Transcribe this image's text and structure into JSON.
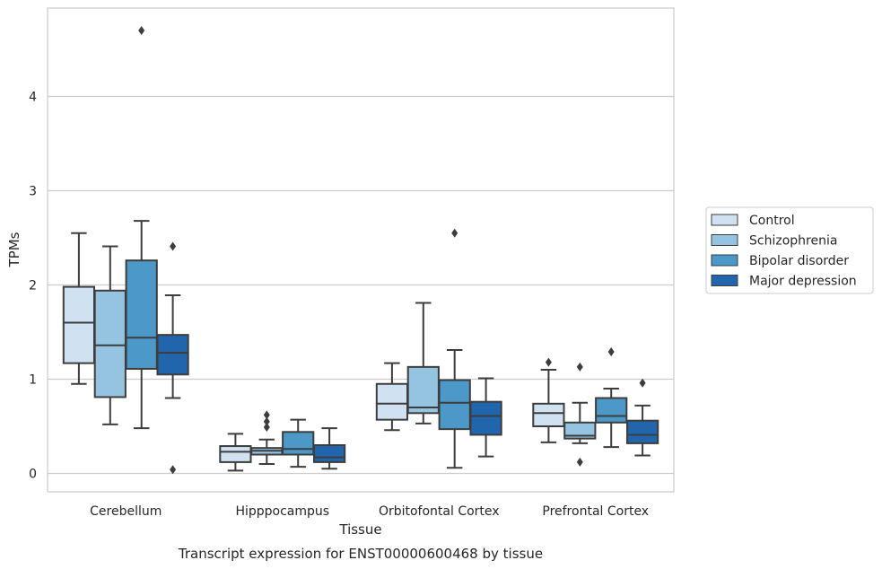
{
  "chart_data": {
    "type": "boxplot",
    "title": "",
    "caption": "Transcript expression for ENST00000600468 by tissue",
    "xlabel": "Tissue",
    "ylabel": "TPMs",
    "ylim": [
      -0.2,
      4.95
    ],
    "yticks": [
      0,
      1,
      2,
      3,
      4
    ],
    "grid": "horizontal",
    "legend_position": "right",
    "categories": [
      "Cerebellum",
      "Hipppocampus",
      "Orbitofontal Cortex",
      "Prefrontal Cortex"
    ],
    "series": [
      {
        "name": "Control",
        "color": "#d0e1f2",
        "boxes": [
          {
            "whislo": 0.95,
            "q1": 1.17,
            "med": 1.6,
            "q3": 1.98,
            "whishi": 2.55,
            "fliers": []
          },
          {
            "whislo": 0.03,
            "q1": 0.12,
            "med": 0.23,
            "q3": 0.29,
            "whishi": 0.42,
            "fliers": []
          },
          {
            "whislo": 0.46,
            "q1": 0.57,
            "med": 0.74,
            "q3": 0.95,
            "whishi": 1.17,
            "fliers": []
          },
          {
            "whislo": 0.33,
            "q1": 0.5,
            "med": 0.64,
            "q3": 0.74,
            "whishi": 1.1,
            "fliers": [
              1.18
            ]
          }
        ]
      },
      {
        "name": "Schizophrenia",
        "color": "#94c4df",
        "boxes": [
          {
            "whislo": 0.52,
            "q1": 0.81,
            "med": 1.36,
            "q3": 1.94,
            "whishi": 2.41,
            "fliers": []
          },
          {
            "whislo": 0.1,
            "q1": 0.2,
            "med": 0.24,
            "q3": 0.27,
            "whishi": 0.36,
            "fliers": [
              0.62,
              0.55,
              0.49
            ]
          },
          {
            "whislo": 0.53,
            "q1": 0.64,
            "med": 0.7,
            "q3": 1.13,
            "whishi": 1.81,
            "fliers": []
          },
          {
            "whislo": 0.32,
            "q1": 0.37,
            "med": 0.4,
            "q3": 0.54,
            "whishi": 0.75,
            "fliers": [
              1.13,
              0.12
            ]
          }
        ]
      },
      {
        "name": "Bipolar disorder",
        "color": "#4b98c9",
        "boxes": [
          {
            "whislo": 0.48,
            "q1": 1.11,
            "med": 1.44,
            "q3": 2.26,
            "whishi": 2.68,
            "fliers": [
              4.7
            ]
          },
          {
            "whislo": 0.07,
            "q1": 0.2,
            "med": 0.26,
            "q3": 0.44,
            "whishi": 0.57,
            "fliers": []
          },
          {
            "whislo": 0.06,
            "q1": 0.47,
            "med": 0.75,
            "q3": 0.99,
            "whishi": 1.31,
            "fliers": [
              2.55
            ]
          },
          {
            "whislo": 0.28,
            "q1": 0.54,
            "med": 0.61,
            "q3": 0.8,
            "whishi": 0.9,
            "fliers": [
              1.29
            ]
          }
        ]
      },
      {
        "name": "Major depression",
        "color": "#2166ac",
        "boxes": [
          {
            "whislo": 0.8,
            "q1": 1.05,
            "med": 1.28,
            "q3": 1.47,
            "whishi": 1.89,
            "fliers": [
              2.41,
              0.04
            ]
          },
          {
            "whislo": 0.05,
            "q1": 0.12,
            "med": 0.17,
            "q3": 0.3,
            "whishi": 0.48,
            "fliers": []
          },
          {
            "whislo": 0.18,
            "q1": 0.41,
            "med": 0.61,
            "q3": 0.76,
            "whishi": 1.01,
            "fliers": []
          },
          {
            "whislo": 0.19,
            "q1": 0.32,
            "med": 0.41,
            "q3": 0.56,
            "whishi": 0.72,
            "fliers": [
              0.96
            ]
          }
        ]
      }
    ],
    "colors": {
      "edge": "#3d3d3d",
      "grid": "#cccccc",
      "axes": "#cccccc",
      "text": "#262626"
    }
  }
}
